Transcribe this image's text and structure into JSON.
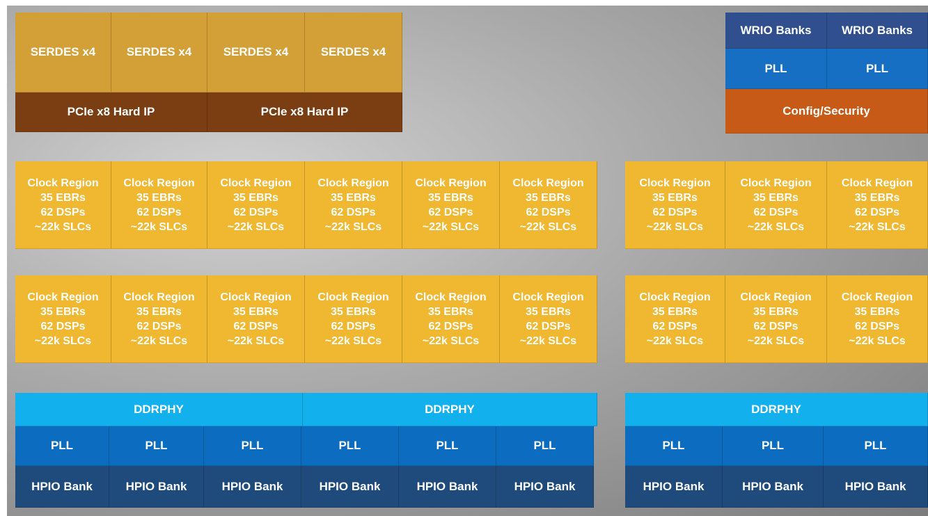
{
  "top_left": {
    "serdes": [
      "SERDES x4",
      "SERDES x4",
      "SERDES x4",
      "SERDES x4"
    ],
    "pcie": [
      "PCIe x8 Hard IP",
      "PCIe x8 Hard IP"
    ]
  },
  "top_right": {
    "wrio": [
      "WRIO Banks",
      "WRIO Banks"
    ],
    "pll": [
      "PLL",
      "PLL"
    ],
    "config": "Config/Security"
  },
  "clock_regions": {
    "rows": [
      [
        {
          "lines": [
            "Clock Region",
            "35 EBRs",
            "62 DSPs",
            "~22k SLCs"
          ]
        },
        {
          "lines": [
            "Clock Region",
            "35 EBRs",
            "62 DSPs",
            "~22k SLCs"
          ]
        },
        {
          "lines": [
            "Clock Region",
            "35 EBRs",
            "62 DSPs",
            "~22k SLCs"
          ]
        },
        {
          "lines": [
            "Clock Region",
            "35 EBRs",
            "62 DSPs",
            "~22k SLCs"
          ]
        },
        {
          "lines": [
            "Clock Region",
            "35 EBRs",
            "62 DSPs",
            "~22k SLCs"
          ]
        },
        {
          "lines": [
            "Clock Region",
            "35 EBRs",
            "62 DSPs",
            "~22k SLCs"
          ]
        },
        {
          "lines": [
            "Clock Region",
            "35 EBRs",
            "62 DSPs",
            "~22k SLCs"
          ]
        },
        {
          "lines": [
            "Clock Region",
            "35 EBRs",
            "62 DSPs",
            "~22k SLCs"
          ]
        },
        {
          "lines": [
            "Clock Region",
            "35 EBRs",
            "62 DSPs",
            "~22k SLCs"
          ]
        }
      ],
      [
        {
          "lines": [
            "Clock Region",
            "35 EBRs",
            "62 DSPs",
            "~22k SLCs"
          ]
        },
        {
          "lines": [
            "Clock Region",
            "35 EBRs",
            "62 DSPs",
            "~22k SLCs"
          ]
        },
        {
          "lines": [
            "Clock Region",
            "35 EBRs",
            "62 DSPs",
            "~22k SLCs"
          ]
        },
        {
          "lines": [
            "Clock Region",
            "35 EBRs",
            "62 DSPs",
            "~22k SLCs"
          ]
        },
        {
          "lines": [
            "Clock Region",
            "35 EBRs",
            "62 DSPs",
            "~22k SLCs"
          ]
        },
        {
          "lines": [
            "Clock Region",
            "35 EBRs",
            "62 DSPs",
            "~22k SLCs"
          ]
        },
        {
          "lines": [
            "Clock Region",
            "35 EBRs",
            "62 DSPs",
            "~22k SLCs"
          ]
        },
        {
          "lines": [
            "Clock Region",
            "35 EBRs",
            "62 DSPs",
            "~22k SLCs"
          ]
        },
        {
          "lines": [
            "Clock Region",
            "35 EBRs",
            "62 DSPs",
            "~22k SLCs"
          ]
        }
      ]
    ]
  },
  "bottom": {
    "ddrphy": [
      "DDRPHY",
      "DDRPHY",
      "DDRPHY"
    ],
    "pll": [
      "PLL",
      "PLL",
      "PLL",
      "PLL",
      "PLL",
      "PLL",
      "PLL",
      "PLL",
      "PLL"
    ],
    "hpio": [
      "HPIO Bank",
      "HPIO Bank",
      "HPIO Bank",
      "HPIO Bank",
      "HPIO Bank",
      "HPIO Bank",
      "HPIO Bank",
      "HPIO Bank",
      "HPIO Bank"
    ]
  }
}
